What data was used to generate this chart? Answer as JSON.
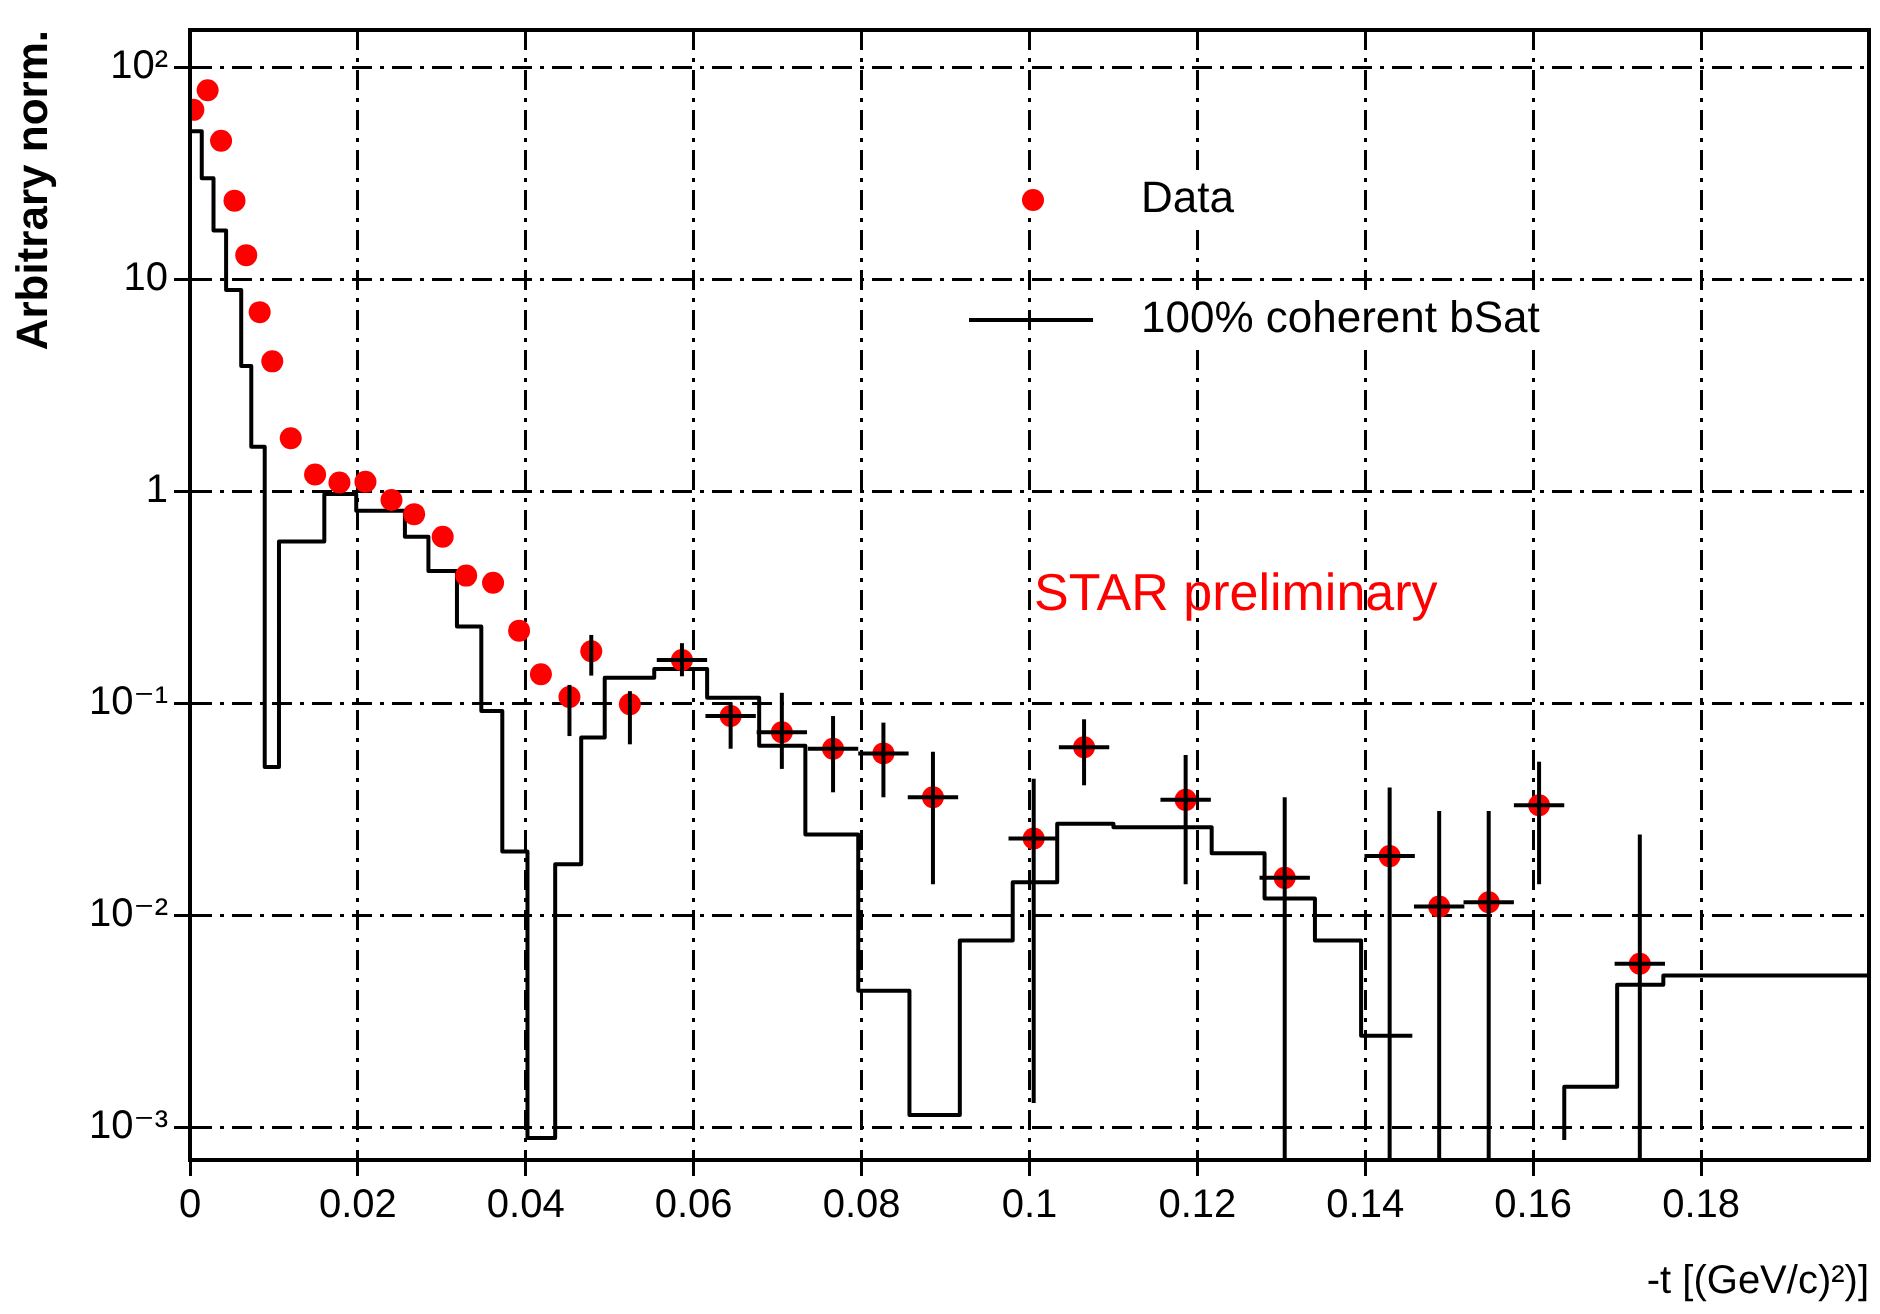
{
  "chart_data": {
    "type": "scatter",
    "ylabel": "Arbitrary norm.",
    "xlabel": "-t [(GeV/c)²)]",
    "annotations": [
      "STAR preliminary"
    ],
    "log": "y",
    "grid": true,
    "legend": "top right",
    "xlim": [
      0,
      0.2
    ],
    "xticks": [
      0,
      0.02,
      0.04,
      0.06,
      0.08,
      0.1,
      0.12,
      0.14,
      0.16,
      0.18
    ],
    "ylim": [
      0.0007,
      150
    ],
    "yticks": [
      {
        "value": 0.001,
        "label": "10⁻³"
      },
      {
        "value": 0.01,
        "label": "10⁻²"
      },
      {
        "value": 0.1,
        "label": "10⁻¹"
      },
      1,
      10,
      {
        "value": 100,
        "label": "10²"
      }
    ],
    "series": [
      {
        "name": "Data",
        "marker": "circle",
        "color": "#ff0000",
        "x": [
          0.0004,
          0.0021,
          0.0037,
          0.0053,
          0.0067,
          0.0083,
          0.0098,
          0.012,
          0.0149,
          0.0178,
          0.0209,
          0.024,
          0.0267,
          0.0301,
          0.0329,
          0.0361,
          0.0392,
          0.0418,
          0.0452,
          0.0478,
          0.0524,
          0.0586,
          0.0644,
          0.0705,
          0.0766,
          0.0826,
          0.0885,
          0.1005,
          0.1065,
          0.1186,
          0.1304,
          0.1429,
          0.1488,
          0.1547,
          0.1607,
          0.1727
        ],
        "values": [
          63,
          78,
          45,
          23.5,
          13,
          7,
          4.1,
          1.78,
          1.2,
          1.1,
          1.11,
          0.91,
          0.78,
          0.61,
          0.4,
          0.37,
          0.22,
          0.137,
          0.107,
          0.176,
          0.099,
          0.16,
          0.087,
          0.073,
          0.061,
          0.058,
          0.036,
          0.023,
          0.062,
          0.035,
          0.015,
          0.019,
          0.011,
          0.0115,
          0.033,
          0.0059
        ],
        "errors": [
          null,
          null,
          null,
          null,
          null,
          null,
          null,
          null,
          null,
          null,
          null,
          null,
          null,
          null,
          null,
          null,
          null,
          null,
          [
            0.07,
            0.122
          ],
          [
            0.135,
            0.21
          ],
          [
            0.064,
            0.114
          ],
          [
            0.134,
            0.192
          ],
          [
            0.061,
            0.101
          ],
          [
            0.049,
            0.112
          ],
          [
            0.038,
            0.087
          ],
          [
            0.036,
            0.081
          ],
          [
            0.014,
            0.059
          ],
          [
            0.0013,
            0.044
          ],
          [
            0.041,
            0.084
          ],
          [
            0.014,
            0.057
          ],
          [
            0.0007,
            0.036
          ],
          [
            0.0007,
            0.04
          ],
          [
            0.0007,
            0.031
          ],
          [
            0.0007,
            0.031
          ],
          [
            0.014,
            0.053
          ],
          [
            0.0007,
            0.024
          ]
        ],
        "xerrors": [
          null,
          null,
          null,
          null,
          null,
          null,
          null,
          null,
          null,
          null,
          null,
          null,
          null,
          null,
          null,
          null,
          null,
          null,
          null,
          null,
          null,
          0.003,
          0.003,
          0.003,
          0.003,
          0.003,
          0.003,
          0.003,
          0.003,
          0.003,
          0.003,
          0.003,
          0.003,
          0.003,
          0.003,
          0.003
        ]
      },
      {
        "name": "100% coherent bSat",
        "type": "step",
        "color": "#000000",
        "x": [
          0,
          0.0014,
          0.0028,
          0.0043,
          0.0061,
          0.0073,
          0.0089,
          0.0106,
          0.016,
          0.0198,
          0.0256,
          0.0284,
          0.0318,
          0.0347,
          0.0372,
          0.0402,
          0.0435,
          0.0466,
          0.0494,
          0.0553,
          0.0616,
          0.0678,
          0.0733,
          0.0796,
          0.0857,
          0.0917,
          0.098,
          0.1033,
          0.11,
          0.1217,
          0.128,
          0.134,
          0.1395,
          0.1456,
          0.1519,
          0.1637,
          0.17,
          0.1755,
          0.1878,
          0.2
        ],
        "values": [
          80,
          50,
          30,
          17,
          8.9,
          3.9,
          1.62,
          0.05,
          0.58,
          0.97,
          0.81,
          0.61,
          0.42,
          0.23,
          0.092,
          0.02,
          0.00089,
          0.0174,
          0.069,
          0.132,
          0.145,
          0.106,
          0.063,
          0.024,
          0.0044,
          0.00114,
          0.0076,
          0.0143,
          0.027,
          0.026,
          0.0196,
          0.012,
          0.0076,
          0.0027,
          null,
          0.00087,
          0.00155,
          0.0047,
          0.0052,
          0.0052
        ]
      }
    ]
  }
}
